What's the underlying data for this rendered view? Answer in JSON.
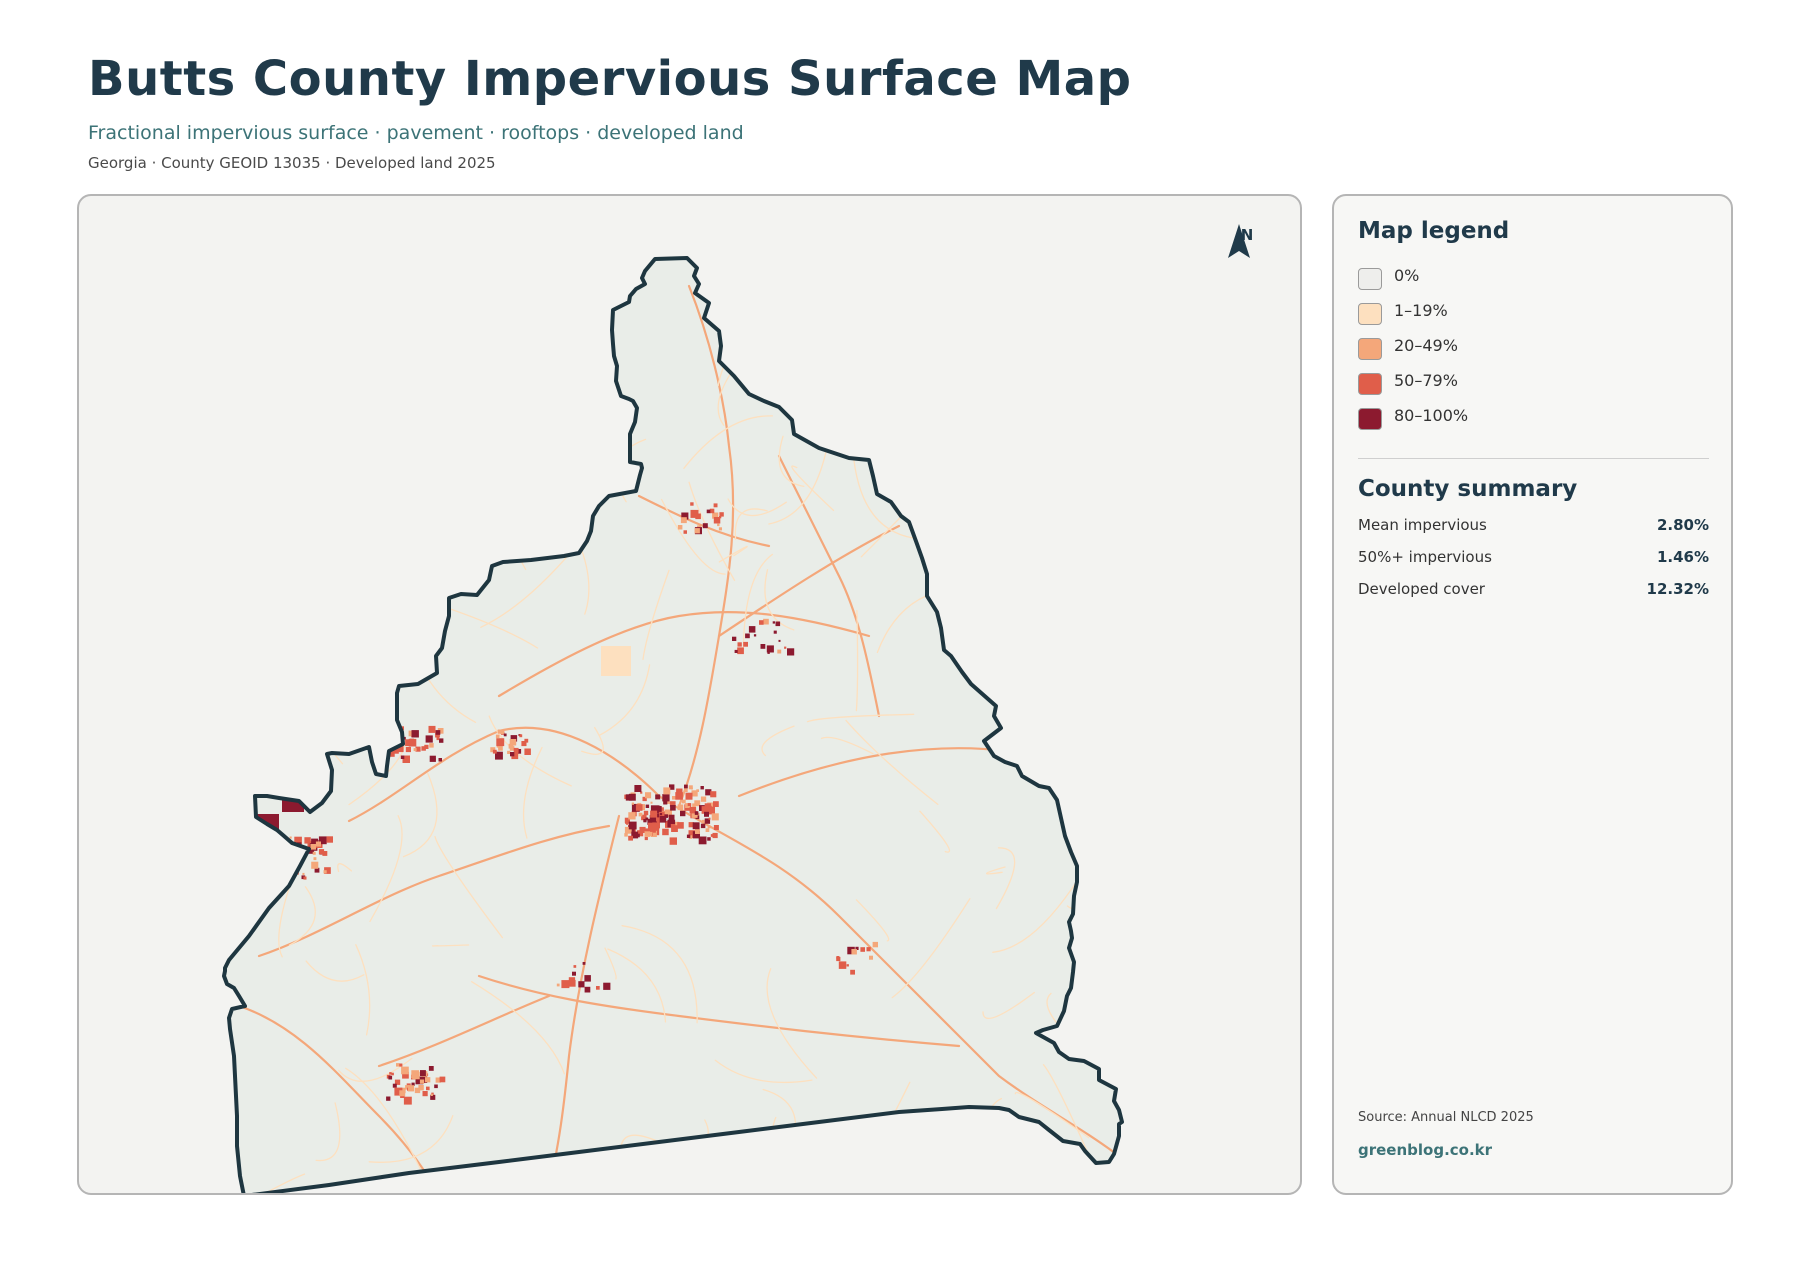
{
  "header": {
    "title": "Butts County Impervious Surface Map",
    "subtitle": "Fractional impervious surface · pavement · rooftops · developed land",
    "meta": "Georgia · County GEOID 13035 · Developed land 2025"
  },
  "map": {
    "north_label": "N",
    "boundary_color": "#1e3640",
    "land_color": "#e9ede8"
  },
  "legend": {
    "title": "Map legend",
    "items": [
      {
        "label": "0%",
        "color": "#eeeeec"
      },
      {
        "label": "1–19%",
        "color": "#fde0bf"
      },
      {
        "label": "20–49%",
        "color": "#f4a77a"
      },
      {
        "label": "50–79%",
        "color": "#e05e4a"
      },
      {
        "label": "80–100%",
        "color": "#8c1a2f"
      }
    ]
  },
  "summary": {
    "title": "County summary",
    "rows": [
      {
        "label": "Mean impervious",
        "value": "2.80%"
      },
      {
        "label": "50%+ impervious",
        "value": "1.46%"
      },
      {
        "label": "Developed cover",
        "value": "12.32%"
      }
    ]
  },
  "footer": {
    "source": "Source: Annual NLCD 2025",
    "brand": "greenblog.co.kr"
  }
}
